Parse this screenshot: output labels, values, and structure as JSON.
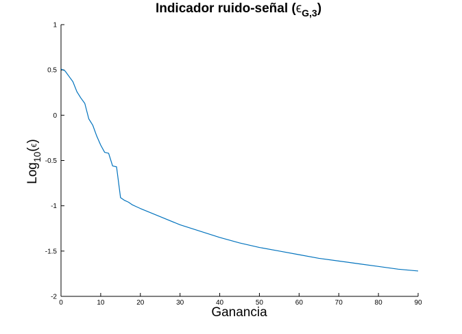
{
  "chart_data": {
    "type": "line",
    "title": {
      "main": "Indicador ruido-señal (",
      "epsilon": "ϵ",
      "subscript": "G,3",
      "close": ")"
    },
    "xlabel": "Ganancia",
    "ylabel": {
      "main": "Log",
      "subscript": "10",
      "open": "(",
      "epsilon": "ϵ",
      "close": ")"
    },
    "xlim": [
      0,
      90
    ],
    "ylim": [
      -2,
      1
    ],
    "xticks": [
      0,
      10,
      20,
      30,
      40,
      50,
      60,
      70,
      80,
      90
    ],
    "yticks": [
      -2,
      -1.5,
      -1,
      -0.5,
      0,
      0.5,
      1
    ],
    "xtick_labels": [
      "0",
      "10",
      "20",
      "30",
      "40",
      "50",
      "60",
      "70",
      "80",
      "90"
    ],
    "ytick_labels": [
      "-2",
      "-1.5",
      "-1",
      "-0.5",
      "0",
      "0.5",
      "1"
    ],
    "grid": false,
    "line_color": "#0072BD",
    "series": [
      {
        "x": [
          0,
          1,
          2,
          3,
          4,
          5,
          6,
          7,
          8,
          9,
          10,
          11,
          12,
          13,
          14,
          15,
          16,
          17,
          18,
          19,
          20,
          25,
          30,
          35,
          40,
          45,
          50,
          55,
          60,
          65,
          70,
          75,
          80,
          85,
          90
        ],
        "y": [
          0.51,
          0.49,
          0.43,
          0.37,
          0.26,
          0.19,
          0.13,
          -0.04,
          -0.11,
          -0.23,
          -0.33,
          -0.41,
          -0.42,
          -0.56,
          -0.57,
          -0.91,
          -0.94,
          -0.96,
          -0.99,
          -1.01,
          -1.03,
          -1.12,
          -1.21,
          -1.28,
          -1.35,
          -1.41,
          -1.46,
          -1.5,
          -1.54,
          -1.58,
          -1.61,
          -1.64,
          -1.67,
          -1.7,
          -1.72
        ]
      }
    ]
  }
}
